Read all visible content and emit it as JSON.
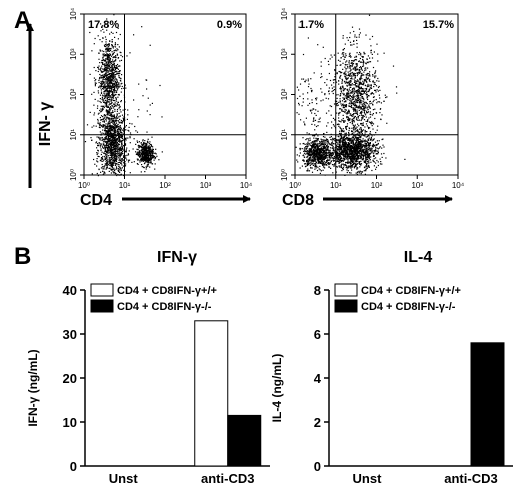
{
  "panels": {
    "a": "A",
    "b": "B"
  },
  "flow_axes": {
    "y_label": "IFN- γ",
    "x_left": "CD4",
    "x_right": "CD8"
  },
  "chart_data": [
    {
      "type": "scatter",
      "title": "",
      "xlabel": "CD4",
      "ylabel": "IFN- γ",
      "scale": "log",
      "xlim": [
        1,
        10000
      ],
      "ylim": [
        1,
        10000
      ],
      "gate": [
        10,
        10
      ],
      "ticks": [
        "10⁰",
        "10¹",
        "10²",
        "10³",
        "10⁴"
      ],
      "quadrants": {
        "upper_left": "17.8%",
        "upper_right": "0.9%"
      },
      "populations": [
        {
          "name": "",
          "center": [
            5,
            6
          ],
          "spread": [
            0.18,
            0.42
          ],
          "count": 1100
        },
        {
          "name": "",
          "center": [
            4,
            250
          ],
          "spread": [
            0.14,
            0.55
          ],
          "count": 850
        },
        {
          "name": "",
          "center": [
            32,
            3.5
          ],
          "spread": [
            0.1,
            0.15
          ],
          "count": 450
        },
        {
          "name": "",
          "center": [
            12,
            80
          ],
          "spread": [
            0.5,
            0.8
          ],
          "count": 60
        }
      ]
    },
    {
      "type": "scatter",
      "title": "",
      "xlabel": "CD8",
      "ylabel": "",
      "scale": "log",
      "xlim": [
        1,
        10000
      ],
      "ylim": [
        1,
        10000
      ],
      "gate": [
        10,
        10
      ],
      "ticks": [
        "10⁰",
        "10¹",
        "10²",
        "10³",
        "10⁴"
      ],
      "quadrants": {
        "upper_left": "1.7%",
        "upper_right": "15.7%"
      },
      "populations": [
        {
          "name": "",
          "center": [
            3.5,
            3.5
          ],
          "spread": [
            0.18,
            0.18
          ],
          "count": 700
        },
        {
          "name": "",
          "center": [
            25,
            4
          ],
          "spread": [
            0.3,
            0.22
          ],
          "count": 1300
        },
        {
          "name": "",
          "center": [
            30,
            100
          ],
          "spread": [
            0.28,
            0.6
          ],
          "count": 1100
        },
        {
          "name": "",
          "center": [
            3,
            40
          ],
          "spread": [
            0.25,
            0.7
          ],
          "count": 120
        }
      ]
    },
    {
      "type": "bar",
      "title": "IFN-γ",
      "ylabel": "IFN-γ (ng/mL)",
      "categories": [
        "Unst",
        "anti-CD3"
      ],
      "ylim": [
        0,
        40
      ],
      "yticks": [
        "0",
        "10",
        "20",
        "30",
        "40"
      ],
      "legend_position": "top-left",
      "series": [
        {
          "name": "CD4 + CD8IFN-γ+/+",
          "color": "#ffffff",
          "values": [
            0,
            33
          ]
        },
        {
          "name": "CD4 + CD8IFN-γ-/-",
          "color": "#000000",
          "values": [
            0,
            11.5
          ]
        }
      ]
    },
    {
      "type": "bar",
      "title": "IL-4",
      "ylabel": "IL-4 (ng/mL)",
      "categories": [
        "Unst",
        "anti-CD3"
      ],
      "ylim": [
        0,
        8
      ],
      "yticks": [
        "0",
        "2",
        "4",
        "6",
        "8"
      ],
      "legend_position": "top-left",
      "series": [
        {
          "name": "CD4 + CD8IFN-γ+/+",
          "color": "#ffffff",
          "values": [
            0,
            0
          ]
        },
        {
          "name": "CD4 + CD8IFN-γ-/-",
          "color": "#000000",
          "values": [
            0,
            5.6
          ]
        }
      ]
    }
  ]
}
